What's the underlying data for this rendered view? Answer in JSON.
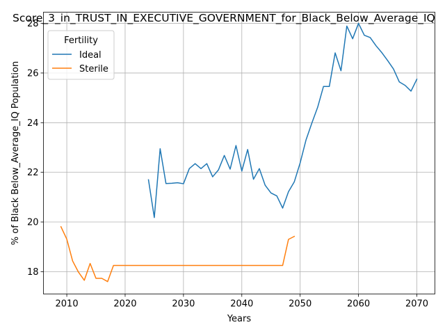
{
  "chart_data": {
    "type": "line",
    "title": "Score_3_in_TRUST_IN_EXECUTIVE_GOVERNMENT_for_Black_Below_Average_IQ",
    "xlabel": "Years",
    "ylabel": "% of Black Below_Average_IQ Population",
    "xlim": [
      2006.0,
      2073.1
    ],
    "ylim": [
      17.1,
      28.45
    ],
    "xticks": [
      2010,
      2020,
      2030,
      2040,
      2050,
      2060,
      2070
    ],
    "yticks": [
      18,
      20,
      22,
      24,
      26,
      28
    ],
    "grid": true,
    "legend": {
      "title": "Fertility",
      "placement": "upper left"
    },
    "series": [
      {
        "name": "Ideal",
        "color": "#1f77b4",
        "x": [
          2024,
          2025,
          2026,
          2027,
          2028,
          2029,
          2030,
          2031,
          2032,
          2033,
          2034,
          2035,
          2036,
          2037,
          2038,
          2039,
          2040,
          2041,
          2042,
          2043,
          2044,
          2045,
          2046,
          2047,
          2048,
          2049,
          2050,
          2051,
          2052,
          2053,
          2054,
          2055,
          2056,
          2057,
          2058,
          2059,
          2060,
          2061,
          2062,
          2063,
          2064,
          2065,
          2066,
          2067,
          2068,
          2069,
          2070
        ],
        "y": [
          21.7,
          20.18,
          22.95,
          21.55,
          21.56,
          21.58,
          21.54,
          22.15,
          22.35,
          22.15,
          22.35,
          21.82,
          22.1,
          22.68,
          22.13,
          23.08,
          22.05,
          22.92,
          21.72,
          22.15,
          21.48,
          21.17,
          21.05,
          20.56,
          21.22,
          21.62,
          22.38,
          23.3,
          23.98,
          24.62,
          25.46,
          25.46,
          26.81,
          26.09,
          27.89,
          27.38,
          28.0,
          27.52,
          27.43,
          27.1,
          26.82,
          26.5,
          26.16,
          25.64,
          25.5,
          25.27,
          25.75
        ]
      },
      {
        "name": "Sterile",
        "color": "#ff7f0e",
        "x": [
          2009,
          2010,
          2011,
          2012,
          2013,
          2014,
          2015,
          2016,
          2017,
          2018,
          2019,
          2020,
          2021,
          2022,
          2023,
          2024,
          2025,
          2026,
          2027,
          2028,
          2029,
          2030,
          2031,
          2032,
          2033,
          2034,
          2035,
          2036,
          2037,
          2038,
          2039,
          2040,
          2041,
          2042,
          2043,
          2044,
          2045,
          2046,
          2047,
          2048,
          2049
        ],
        "y": [
          19.81,
          19.31,
          18.43,
          17.98,
          17.65,
          18.33,
          17.73,
          17.73,
          17.6,
          18.25,
          18.25,
          18.25,
          18.25,
          18.25,
          18.25,
          18.25,
          18.25,
          18.25,
          18.25,
          18.25,
          18.25,
          18.25,
          18.25,
          18.25,
          18.25,
          18.25,
          18.25,
          18.25,
          18.25,
          18.25,
          18.25,
          18.25,
          18.25,
          18.25,
          18.25,
          18.25,
          18.25,
          18.25,
          18.25,
          19.3,
          19.42
        ]
      }
    ]
  }
}
